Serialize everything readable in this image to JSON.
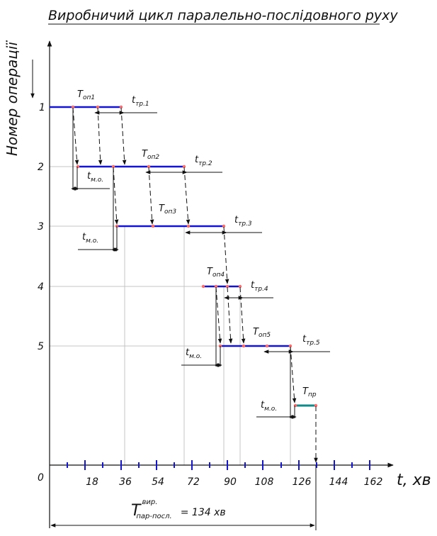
{
  "title": "Виробничий цикл паралельно-послідовного руху",
  "y_axis_label": "Номер операції",
  "x_axis_label": "t, хв",
  "origin_label": "0",
  "operation_numbers": [
    "1",
    "2",
    "3",
    "4",
    "5"
  ],
  "x_ticks": [
    "18",
    "36",
    "54",
    "72",
    "90",
    "108",
    "126",
    "144",
    "162"
  ],
  "annotations": {
    "t_op1": {
      "main": "T",
      "sub": "оп1"
    },
    "t_op2": {
      "main": "T",
      "sub": "оп2"
    },
    "t_op3": {
      "main": "T",
      "sub": "оп3"
    },
    "t_op4": {
      "main": "T",
      "sub": "оп4"
    },
    "t_op5": {
      "main": "T",
      "sub": "оп5"
    },
    "t_tr1": {
      "main": "t",
      "sub": "тр.1"
    },
    "t_tr2": {
      "main": "t",
      "sub": "тр.2"
    },
    "t_tr3": {
      "main": "t",
      "sub": "тр.3"
    },
    "t_tr4": {
      "main": "t",
      "sub": "тр.4"
    },
    "t_tr5": {
      "main": "t",
      "sub": "тр.5"
    },
    "t_mo1": {
      "main": "t",
      "sub": "м.о."
    },
    "t_mo2": {
      "main": "t",
      "sub": "м.о."
    },
    "t_mo3": {
      "main": "t",
      "sub": "м.о."
    },
    "t_mo4": {
      "main": "t",
      "sub": "м.о."
    },
    "t_pr": {
      "main": "T",
      "sub": "пр"
    }
  },
  "cycle": {
    "main": "T",
    "sup": "вир.",
    "sub": "пар-посл.",
    "value": "= 134 хв"
  },
  "colors": {
    "operation_bar": "#1515d0",
    "transport_bar": "#138a8a",
    "grid": "#c4c4c4",
    "marker": "#ff6a6a",
    "axis": "#111111",
    "tick": "#1515d0"
  }
}
